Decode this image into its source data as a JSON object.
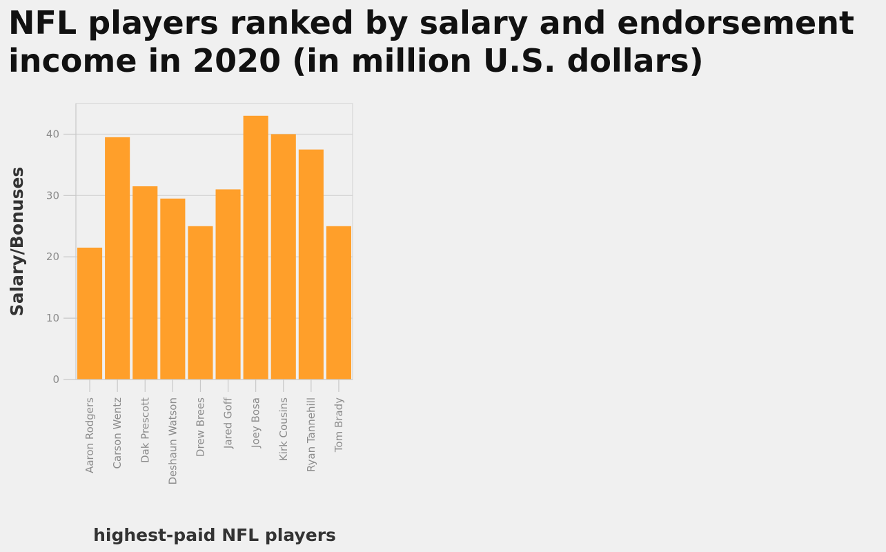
{
  "chart_data": {
    "type": "bar",
    "title": "NFL players ranked by salary and endorsement income in 2020 (in million U.S. dollars)",
    "xlabel": "highest-paid NFL players",
    "ylabel": "Salary/Bonuses",
    "categories": [
      "Aaron Rodgers",
      "Carson Wentz",
      "Dak Prescott",
      "Deshaun Watson",
      "Drew Brees",
      "Jared Goff",
      "Joey Bosa",
      "Kirk Cousins",
      "Ryan Tannehill",
      "Tom Brady"
    ],
    "values": [
      21.5,
      39.5,
      31.5,
      29.5,
      25,
      31,
      43,
      40,
      37.5,
      25
    ],
    "ylim": [
      0,
      45
    ],
    "yticks": [
      0,
      10,
      20,
      30,
      40
    ],
    "bar_color": "#ff9f2a",
    "grid": true,
    "legend": "none"
  }
}
